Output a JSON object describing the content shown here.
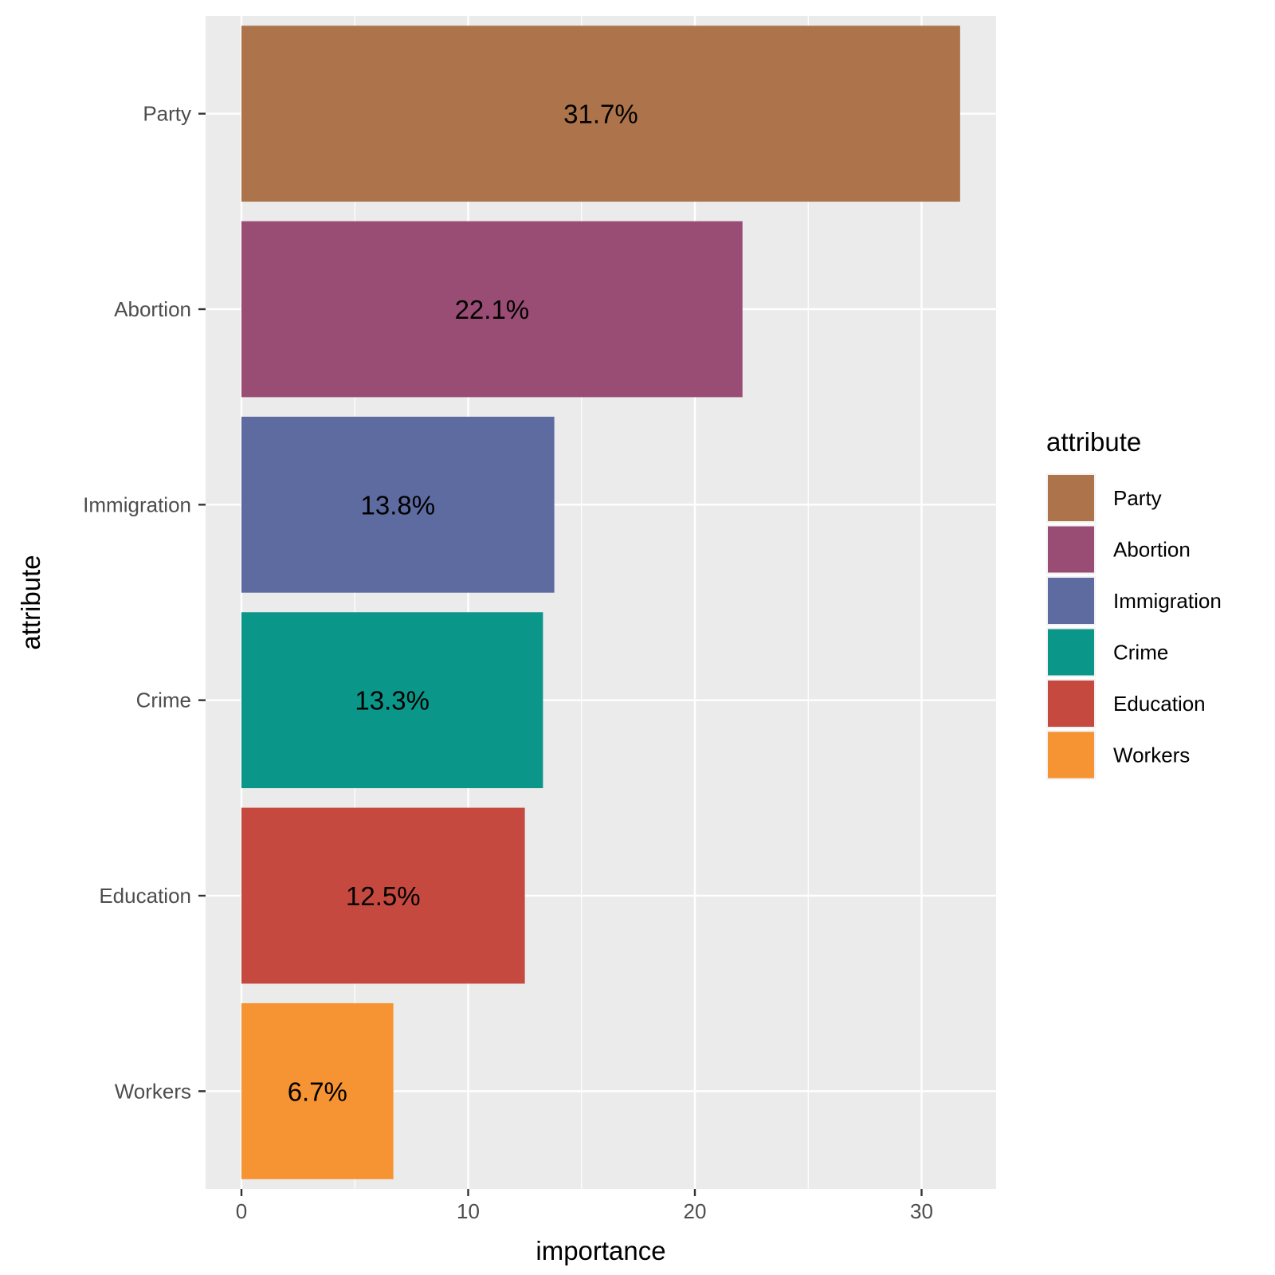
{
  "chart_data": {
    "type": "bar",
    "orientation": "horizontal",
    "categories": [
      "Party",
      "Abortion",
      "Immigration",
      "Crime",
      "Education",
      "Workers"
    ],
    "values": [
      31.7,
      22.1,
      13.8,
      13.3,
      12.5,
      6.7
    ],
    "bar_labels": [
      "31.7%",
      "22.1%",
      "13.8%",
      "13.3%",
      "12.5%",
      "6.7%"
    ],
    "colors": [
      "#AD734A",
      "#994C74",
      "#5E6BA0",
      "#0A9689",
      "#C5493F",
      "#F69332"
    ],
    "xlabel": "importance",
    "ylabel": "attribute",
    "xlim": [
      -1.6,
      33.3
    ],
    "x_ticks": [
      0,
      10,
      20,
      30
    ],
    "x_tick_labels": [
      "0",
      "10",
      "20",
      "30"
    ],
    "grid": true,
    "legend": {
      "title": "attribute",
      "position": "right",
      "entries": [
        "Party",
        "Abortion",
        "Immigration",
        "Crime",
        "Education",
        "Workers"
      ]
    }
  }
}
